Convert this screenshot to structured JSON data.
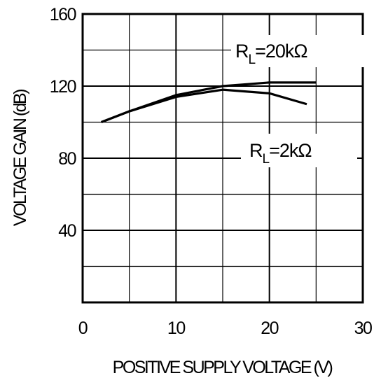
{
  "chart_data": {
    "type": "line",
    "xlabel": "POSITIVE SUPPLY VOLTAGE (V)",
    "ylabel": "VOLTAGE GAIN (dB)",
    "xlim": [
      0,
      30
    ],
    "ylim": [
      0,
      160
    ],
    "x_ticks": [
      0,
      10,
      20,
      30
    ],
    "y_ticks": [
      40,
      80,
      120,
      160
    ],
    "grid": true,
    "grid_x_step": 5,
    "grid_y_step": 20,
    "series": [
      {
        "name": "R_L = 20kΩ",
        "x": [
          2,
          5,
          10,
          15,
          20,
          25
        ],
        "y": [
          100,
          106,
          115,
          120,
          122,
          122
        ]
      },
      {
        "name": "R_L = 2kΩ",
        "x": [
          2,
          5,
          10,
          15,
          20,
          24
        ],
        "y": [
          100,
          106,
          114,
          118,
          116,
          110
        ]
      }
    ],
    "annotations": [
      {
        "main": "R",
        "sub": "L",
        "rest": "=20kΩ",
        "series": 0
      },
      {
        "main": "R",
        "sub": "L",
        "rest": "=2kΩ",
        "series": 1
      }
    ]
  }
}
